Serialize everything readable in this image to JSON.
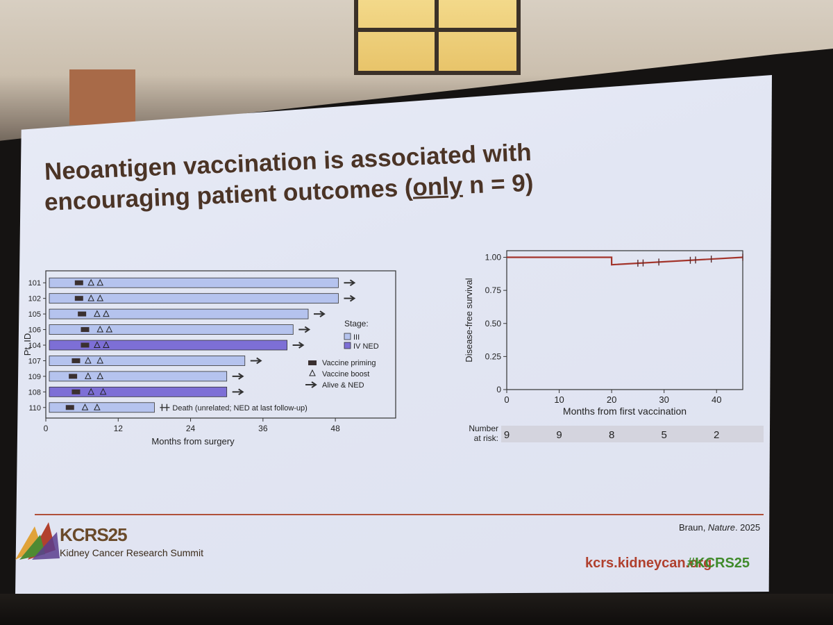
{
  "slide": {
    "title_line1": "Neoantigen vaccination is associated with",
    "title_line2_pre": "encouraging patient outcomes (",
    "title_line2_underlined": "only",
    "title_line2_post": " n = 9)",
    "citation_author": "Braun, ",
    "citation_journal": "Nature",
    "citation_year": ". 2025",
    "footer": {
      "logo_name": "KCRS25",
      "logo_sub": "Kidney Cancer Research Summit",
      "site": "kcrs.kidneycan.org",
      "hashtag": "#KCRS25"
    }
  },
  "chart_data": [
    {
      "type": "swimmer",
      "ylabel": "Pt. ID",
      "xlabel": "Months from surgery",
      "xticks": [
        0,
        12,
        24,
        36,
        48
      ],
      "xlim": [
        0,
        58
      ],
      "legend_stage_title": "Stage:",
      "legend_stage": [
        {
          "label": "III",
          "color": "#b5c3ee"
        },
        {
          "label": "IV NED",
          "color": "#7d6fd6"
        }
      ],
      "legend_markers": [
        "Vaccine priming",
        "Vaccine boost",
        "Alive & NED"
      ],
      "death_note": "Death (unrelated; NED at last follow-up)",
      "patients": [
        {
          "id": "101",
          "stage": "III",
          "end": 48.5,
          "prime": 5.5,
          "boosts": [
            7.5,
            9
          ],
          "alive": true
        },
        {
          "id": "102",
          "stage": "III",
          "end": 48.5,
          "prime": 5.5,
          "boosts": [
            7.5,
            9
          ],
          "alive": true
        },
        {
          "id": "105",
          "stage": "III",
          "end": 43.5,
          "prime": 6,
          "boosts": [
            8.5,
            10
          ],
          "alive": true
        },
        {
          "id": "106",
          "stage": "III",
          "end": 41,
          "prime": 6.5,
          "boosts": [
            9,
            10.5
          ],
          "alive": true
        },
        {
          "id": "104",
          "stage": "IV NED",
          "end": 40,
          "prime": 6.5,
          "boosts": [
            8.5,
            10
          ],
          "alive": true
        },
        {
          "id": "107",
          "stage": "III",
          "end": 33,
          "prime": 5,
          "boosts": [
            7,
            9
          ],
          "alive": true
        },
        {
          "id": "109",
          "stage": "III",
          "end": 30,
          "prime": 4.5,
          "boosts": [
            7,
            9
          ],
          "alive": true
        },
        {
          "id": "108",
          "stage": "IV NED",
          "end": 30,
          "prime": 5,
          "boosts": [
            7.5,
            9.5
          ],
          "alive": true
        },
        {
          "id": "110",
          "stage": "III",
          "end": 18,
          "prime": 4,
          "boosts": [
            6.5,
            8.5
          ],
          "alive": false
        }
      ]
    },
    {
      "type": "line",
      "ylabel": "Disease-free survival",
      "xlabel": "Months from first vaccination",
      "xticks": [
        0,
        10,
        20,
        30,
        40
      ],
      "yticks": [
        "0",
        "0.25",
        "0.50",
        "0.75",
        "1.00"
      ],
      "xlim": [
        0,
        45
      ],
      "ylim": [
        0,
        1.05
      ],
      "line_color": "#a3342b",
      "series": [
        {
          "x": [
            0,
            20,
            20,
            45
          ],
          "y": [
            1.0,
            1.0,
            0.944,
            1.0
          ]
        }
      ],
      "censor_marks_x": [
        25,
        26,
        29,
        35,
        36,
        39,
        45
      ],
      "risk_table": {
        "label_line1": "Number",
        "label_line2": "at risk:",
        "x": [
          0,
          10,
          20,
          30,
          40
        ],
        "values": [
          "9",
          "9",
          "8",
          "5",
          "2"
        ]
      }
    }
  ]
}
